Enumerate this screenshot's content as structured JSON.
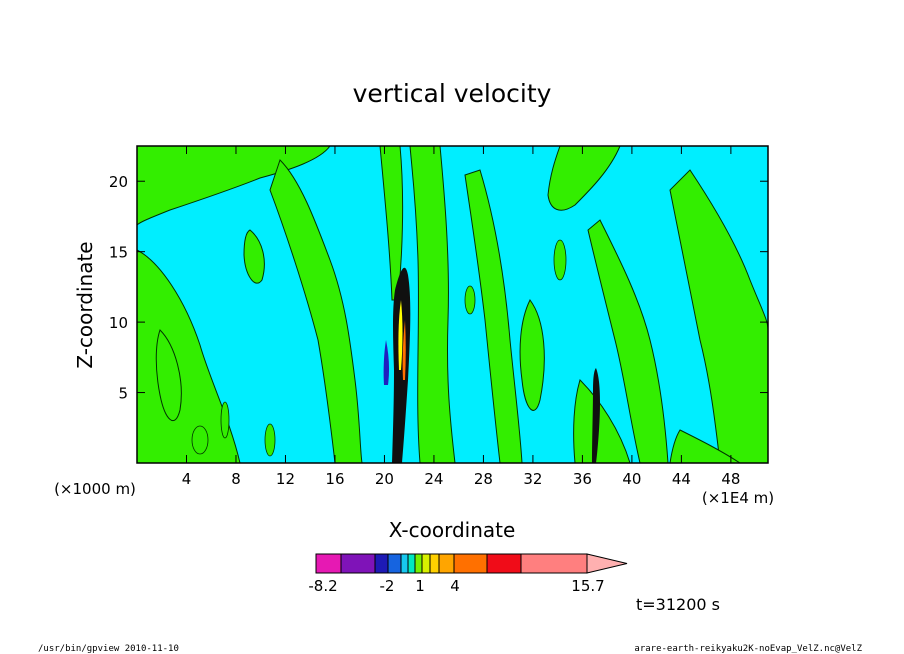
{
  "chart_data": {
    "type": "heatmap",
    "title": "vertical velocity",
    "xlabel": "X-coordinate",
    "ylabel": "Z-coordinate",
    "x_unit_label": "(×1000 m)",
    "x_unit_label_right": "(×1E4 m)",
    "x_ticks": [
      "4",
      "8",
      "12",
      "16",
      "20",
      "24",
      "28",
      "32",
      "36",
      "40",
      "44",
      "48"
    ],
    "y_ticks": [
      "5",
      "10",
      "15",
      "20"
    ],
    "xlim": [
      0,
      51
    ],
    "ylim": [
      0,
      22.5
    ],
    "colorbar": {
      "min_label": "-8.2",
      "max_label": "15.7",
      "tick_labels": [
        "-8.2",
        "-2",
        "1",
        "4",
        "15.7"
      ],
      "colors": [
        "#e619b3",
        "#7f13b8",
        "#1d1ab5",
        "#1664e0",
        "#17c7ef",
        "#00e8c0",
        "#77f000",
        "#d8f000",
        "#ffd000",
        "#ffa500",
        "#ff7000",
        "#f00c18",
        "#ff7f7f",
        "#ffb0b0"
      ]
    },
    "field_colors": {
      "background": "#00eeff",
      "positive": "#33ee00",
      "strong_positive": "#ffff00",
      "strong_negative": "#1010a0"
    },
    "time_label": "t=31200 s"
  },
  "footer": {
    "left": "/usr/bin/gpview  2010-11-10",
    "right": "arare-earth-reikyaku2K-noEvap_VelZ.nc@VelZ"
  }
}
